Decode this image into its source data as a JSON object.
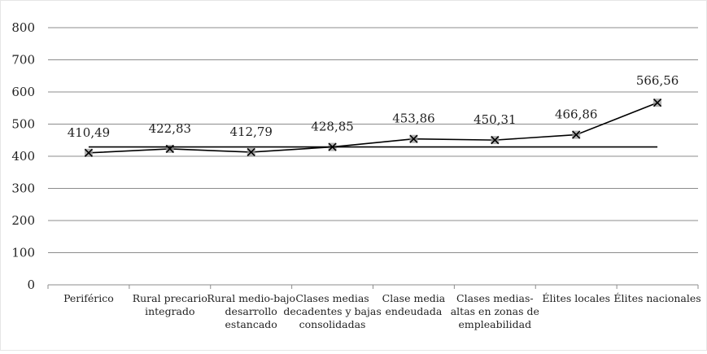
{
  "chart_data": {
    "type": "line",
    "title": "",
    "xlabel": "",
    "ylabel": "",
    "ylim": [
      0,
      800
    ],
    "yticks": [
      "0",
      "100",
      "200",
      "300",
      "400",
      "500",
      "600",
      "700",
      "800"
    ],
    "grid": true,
    "legend": "none",
    "categories": [
      "Periférico",
      "Rural precario integrado",
      "Rural medio-bajo desarrollo estancado",
      "Clases medias decadentes y bajas consolidadas",
      "Clase media endeudada",
      "Clases medias-altas en zonas de empleabilidad",
      "Élites locales",
      "Élites nacionales"
    ],
    "category_lines": [
      [
        "Periférico"
      ],
      [
        "Rural precario",
        "integrado"
      ],
      [
        "Rural medio-bajo",
        "desarrollo",
        "estancado"
      ],
      [
        "Clases medias",
        "decadentes y bajas",
        "consolidadas"
      ],
      [
        "Clase media",
        "endeudada"
      ],
      [
        "Clases medias-",
        "altas en zonas de",
        "empleabilidad"
      ],
      [
        "Élites locales"
      ],
      [
        "Élites nacionales"
      ]
    ],
    "series": [
      {
        "values": [
          410.49,
          422.83,
          412.79,
          428.85,
          453.86,
          450.31,
          466.86,
          566.56
        ],
        "data_labels": [
          "410,49",
          "422,83",
          "412,79",
          "428,85",
          "453,86",
          "450,31",
          "466,86",
          "566,56"
        ],
        "marker": "x",
        "color": "#000000"
      },
      {
        "values": [
          428.85,
          428.85,
          428.85,
          428.85,
          428.85,
          428.85,
          428.85,
          428.85
        ],
        "marker": "none",
        "color": "#000000"
      }
    ],
    "colors": {
      "grid": "#8c8c8c",
      "axis": "#8c8c8c",
      "marker_fill": "#9a9a9a"
    }
  }
}
